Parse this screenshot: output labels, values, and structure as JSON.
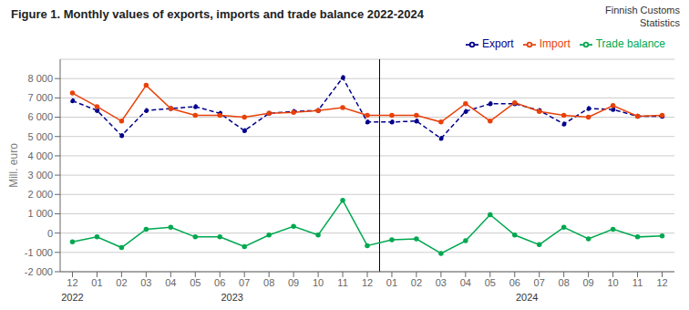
{
  "chart_data": {
    "type": "line",
    "title": "Figure 1. Monthly values of exports, imports  and trade balance 2022-2024",
    "annotations": [
      "Finnish Customs\nStatistics",
      "2022",
      "2023",
      "2024"
    ],
    "ylabel": "Mill. euro",
    "categories": [
      "12",
      "01",
      "02",
      "03",
      "04",
      "05",
      "06",
      "07",
      "08",
      "09",
      "10",
      "11",
      "12",
      "01",
      "02",
      "03",
      "04",
      "05",
      "06",
      "07",
      "08",
      "09",
      "10",
      "11",
      "12"
    ],
    "series": [
      {
        "name": "Export",
        "color": "#00008B",
        "line_style": "dashed",
        "marker": "circle",
        "values": [
          6850,
          6350,
          5050,
          6350,
          6450,
          6550,
          6200,
          5300,
          6200,
          6300,
          6350,
          8050,
          5750,
          5750,
          5800,
          4900,
          6300,
          6700,
          6700,
          6350,
          5650,
          6450,
          6400,
          6050,
          6050
        ]
      },
      {
        "name": "Import",
        "color": "#E8420A",
        "line_style": "solid",
        "marker": "circle",
        "values": [
          7250,
          6550,
          5800,
          7650,
          6450,
          6100,
          6100,
          6000,
          6200,
          6250,
          6350,
          6500,
          6100,
          6100,
          6100,
          5750,
          6700,
          5800,
          6750,
          6300,
          6100,
          6000,
          6600,
          6050,
          6100
        ]
      },
      {
        "name": "Trade balance",
        "color": "#00A850",
        "line_style": "solid",
        "marker": "circle",
        "values": [
          -450,
          -200,
          -750,
          200,
          300,
          -200,
          -200,
          -700,
          -100,
          350,
          -100,
          1700,
          -650,
          -350,
          -300,
          -1050,
          -400,
          950,
          -100,
          -600,
          300,
          -300,
          200,
          -200,
          -150
        ]
      }
    ],
    "ylim": [
      -2000,
      9000
    ],
    "yticks": [
      {
        "value": -2000,
        "label": "-2 000"
      },
      {
        "value": -1000,
        "label": "-1 000"
      },
      0,
      {
        "value": 1000,
        "label": "1 000"
      },
      {
        "value": 2000,
        "label": "2 000"
      },
      {
        "value": 3000,
        "label": "3 000"
      },
      {
        "value": 4000,
        "label": "4 000"
      },
      {
        "value": 5000,
        "label": "5 000"
      },
      {
        "value": 6000,
        "label": "6 000"
      },
      {
        "value": 7000,
        "label": "7 000"
      },
      {
        "value": 8000,
        "label": "8 000"
      }
    ],
    "grid": true,
    "legend": "upper right"
  }
}
